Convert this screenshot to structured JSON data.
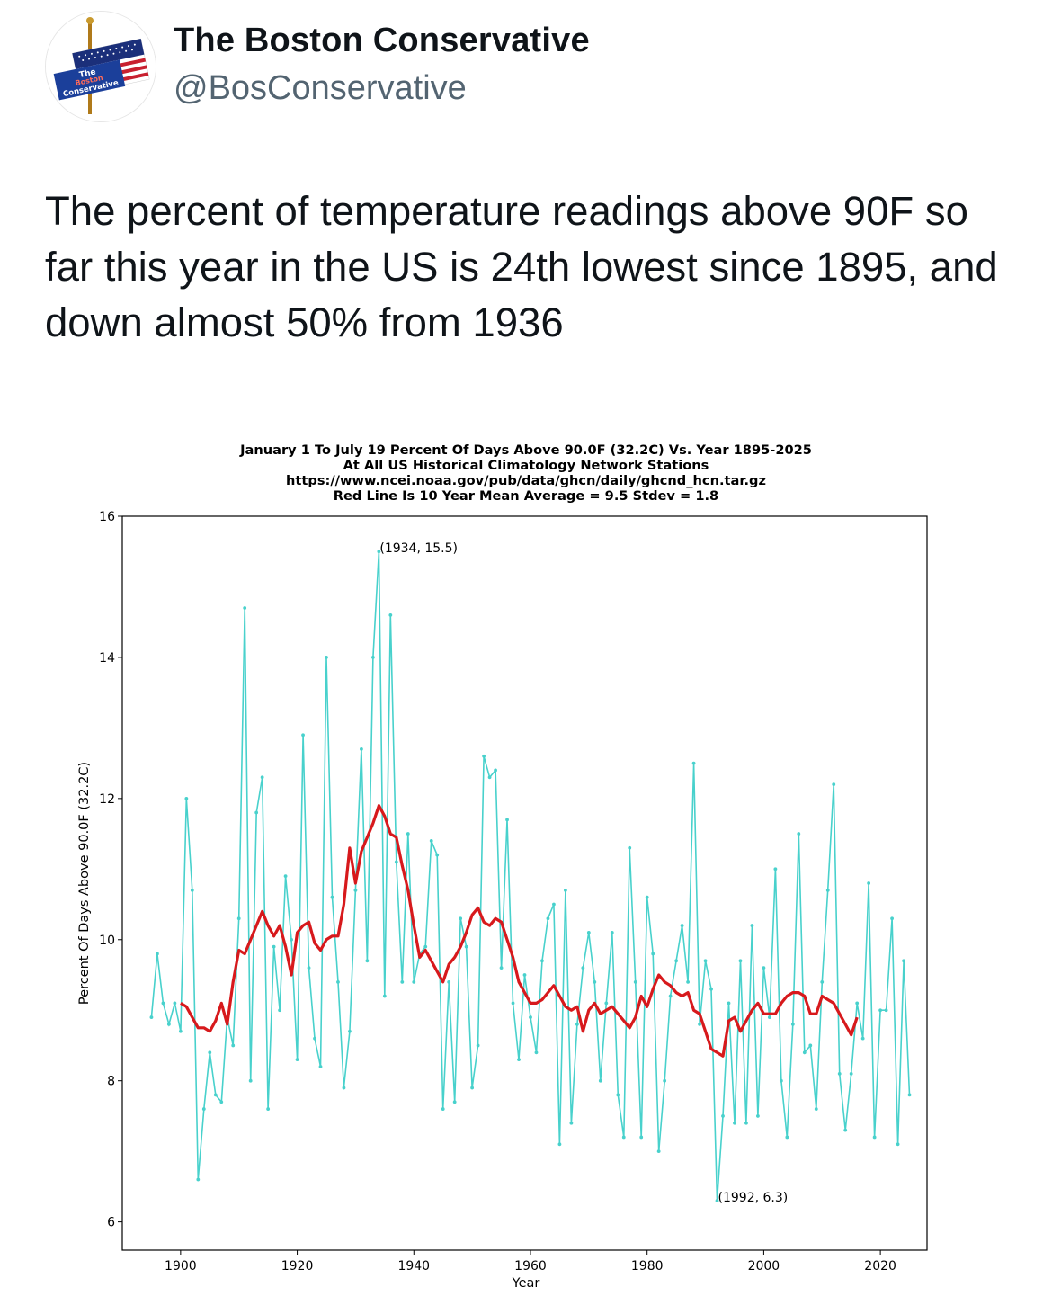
{
  "tweet": {
    "author": {
      "display_name": "The Boston Conservative",
      "handle": "@BosConservative",
      "avatar_text": [
        "The",
        "Boston",
        "Conservative"
      ]
    },
    "text": "The percent of temperature readings above 90F so far this year in the US is 24th lowest since 1895, and down almost 50% from 1936"
  },
  "colors": {
    "series": "#48d1cc",
    "mean_line": "#d7191c",
    "handle": "#536471"
  },
  "chart_data": {
    "type": "line",
    "title_lines": [
      "January 1 To July 19 Percent Of Days Above 90.0F (32.2C) Vs. Year 1895-2025",
      "At All US Historical Climatology Network Stations",
      "https://www.ncei.noaa.gov/pub/data/ghcn/daily/ghcnd_hcn.tar.gz",
      "Red Line Is 10 Year Mean  Average = 9.5 Stdev = 1.8"
    ],
    "xlabel": "Year",
    "ylabel": "Percent Of Days Above 90.0F (32.2C)",
    "xlim": [
      1890,
      2028
    ],
    "ylim": [
      5.6,
      16
    ],
    "xticks": [
      1900,
      1920,
      1940,
      1960,
      1980,
      2000,
      2020
    ],
    "yticks": [
      6,
      8,
      10,
      12,
      14,
      16
    ],
    "annotations": [
      {
        "x": 1934,
        "y": 15.5,
        "text": "(1934, 15.5)"
      },
      {
        "x": 1992,
        "y": 6.3,
        "text": "(1992, 6.3)"
      }
    ],
    "series": [
      {
        "name": "Percent of days above 90F",
        "x_start": 1895,
        "values": [
          8.9,
          9.8,
          9.1,
          8.8,
          9.1,
          8.7,
          12.0,
          10.7,
          6.6,
          7.6,
          8.4,
          7.8,
          7.7,
          8.9,
          8.5,
          10.3,
          14.7,
          8.0,
          11.8,
          12.3,
          7.6,
          9.9,
          9.0,
          10.9,
          10.0,
          8.3,
          12.9,
          9.6,
          8.6,
          8.2,
          14.0,
          10.6,
          9.4,
          7.9,
          8.7,
          10.7,
          12.7,
          9.7,
          14.0,
          15.5,
          9.2,
          14.6,
          11.1,
          9.4,
          11.5,
          9.4,
          9.8,
          9.9,
          11.4,
          11.2,
          7.6,
          9.4,
          7.7,
          10.3,
          9.9,
          7.9,
          8.5,
          12.6,
          12.3,
          12.4,
          9.6,
          11.7,
          9.1,
          8.3,
          9.5,
          8.9,
          8.4,
          9.7,
          10.3,
          10.5,
          7.1,
          10.7,
          7.4,
          8.8,
          9.6,
          10.1,
          9.4,
          8.0,
          9.1,
          10.1,
          7.8,
          7.2,
          11.3,
          9.4,
          7.2,
          10.6,
          9.8,
          7.0,
          8.0,
          9.2,
          9.7,
          10.2,
          9.4,
          12.5,
          8.8,
          9.7,
          9.3,
          6.3,
          7.5,
          9.1,
          7.4,
          9.7,
          7.4,
          10.2,
          7.5,
          9.6,
          8.9,
          11.0,
          8.0,
          7.2,
          8.8,
          11.5,
          8.4,
          8.5,
          7.6,
          9.4,
          10.7,
          12.2,
          8.1,
          7.3,
          8.1,
          9.1,
          8.6,
          10.8,
          7.2,
          9.0,
          9.0,
          10.3,
          7.1,
          9.7,
          7.8
        ]
      },
      {
        "name": "10 Year Mean",
        "x_start": 1900,
        "values": [
          9.1,
          9.05,
          8.9,
          8.75,
          8.75,
          8.7,
          8.85,
          9.1,
          8.8,
          9.4,
          9.85,
          9.8,
          10.0,
          10.2,
          10.4,
          10.2,
          10.05,
          10.2,
          9.9,
          9.5,
          10.1,
          10.2,
          10.25,
          9.95,
          9.85,
          10.0,
          10.05,
          10.05,
          10.5,
          11.3,
          10.8,
          11.25,
          11.45,
          11.65,
          11.9,
          11.75,
          11.5,
          11.45,
          11.05,
          10.7,
          10.2,
          9.75,
          9.85,
          9.7,
          9.55,
          9.4,
          9.65,
          9.75,
          9.9,
          10.1,
          10.35,
          10.45,
          10.25,
          10.2,
          10.3,
          10.25,
          10.0,
          9.75,
          9.4,
          9.25,
          9.1,
          9.1,
          9.15,
          9.25,
          9.35,
          9.2,
          9.05,
          9.0,
          9.05,
          8.7,
          9.0,
          9.1,
          8.95,
          9.0,
          9.05,
          8.95,
          8.85,
          8.75,
          8.9,
          9.2,
          9.05,
          9.3,
          9.5,
          9.4,
          9.35,
          9.25,
          9.2,
          9.25,
          9.0,
          8.95,
          8.7,
          8.45,
          8.4,
          8.35,
          8.85,
          8.9,
          8.7,
          8.85,
          9.0,
          9.1,
          8.95,
          8.95,
          8.95,
          9.1,
          9.2,
          9.25,
          9.25,
          9.2,
          8.95,
          8.95,
          9.2,
          9.15,
          9.1,
          8.95,
          8.8,
          8.65,
          8.9
        ]
      }
    ]
  }
}
